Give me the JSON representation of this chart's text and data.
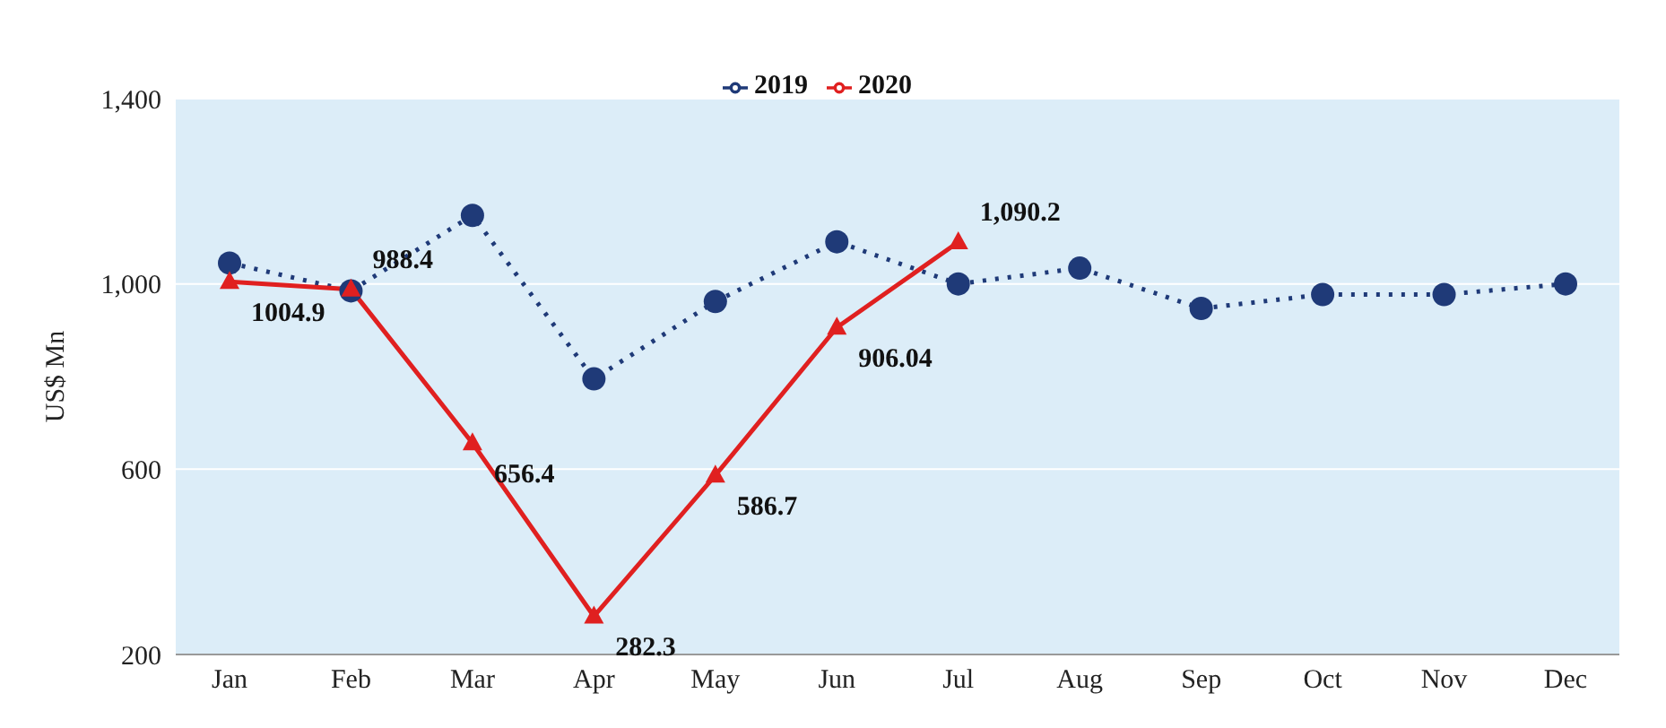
{
  "chart_data": {
    "type": "line",
    "ylabel": "US$ Mn",
    "categories": [
      "Jan",
      "Feb",
      "Mar",
      "Apr",
      "May",
      "Jun",
      "Jul",
      "Aug",
      "Sep",
      "Oct",
      "Nov",
      "Dec"
    ],
    "series": [
      {
        "name": "2019",
        "color": "#1f3a78",
        "marker": "circle",
        "line_style": "dotted",
        "values": [
          1045,
          985,
          1148,
          795,
          962,
          1091,
          1000,
          1034,
          947,
          977,
          977,
          1000
        ]
      },
      {
        "name": "2020",
        "color": "#e02020",
        "marker": "triangle",
        "line_style": "solid",
        "values": [
          1004.9,
          988.4,
          656.4,
          282.3,
          586.7,
          906.04,
          1090.2,
          null,
          null,
          null,
          null,
          null
        ],
        "value_labels": [
          "1004.9",
          "988.4",
          "656.4",
          "282.3",
          "586.7",
          "906.04",
          "1,090.2",
          null,
          null,
          null,
          null,
          null
        ]
      }
    ],
    "ylim": [
      200,
      1400
    ],
    "yticks": [
      200,
      600,
      {
        "value": 1000,
        "label": "1,000"
      },
      {
        "value": 1400,
        "label": "1,400"
      }
    ],
    "grid": "y",
    "legend": "top"
  }
}
